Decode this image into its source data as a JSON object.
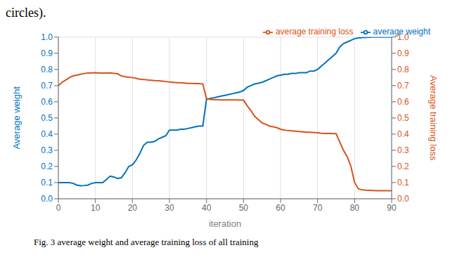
{
  "chart_data": {
    "type": "line",
    "title": "circles).",
    "annotations": [
      "Fig. 3 average weight and average training loss of all training"
    ],
    "xlabel": "iteration",
    "ylabel": "Average weight",
    "y2label": "Average training loss",
    "x": [
      0,
      1,
      2,
      3,
      4,
      5,
      6,
      7,
      8,
      9,
      10,
      11,
      12,
      13,
      14,
      15,
      16,
      17,
      18,
      19,
      20,
      21,
      22,
      23,
      24,
      25,
      26,
      27,
      28,
      29,
      30,
      31,
      32,
      33,
      34,
      35,
      36,
      37,
      38,
      39,
      40,
      41,
      42,
      43,
      44,
      45,
      46,
      47,
      48,
      49,
      50,
      51,
      52,
      53,
      54,
      55,
      56,
      57,
      58,
      59,
      60,
      61,
      62,
      63,
      64,
      65,
      66,
      67,
      68,
      69,
      70,
      71,
      72,
      73,
      74,
      75,
      76,
      77,
      78,
      79,
      80,
      81,
      82,
      83,
      84,
      85,
      86,
      87,
      88,
      89,
      90
    ],
    "series": [
      {
        "name": "average weight",
        "color": "#0072BD",
        "axis": "y",
        "values": [
          0.1,
          0.1,
          0.1,
          0.1,
          0.095,
          0.085,
          0.08,
          0.082,
          0.085,
          0.095,
          0.1,
          0.1,
          0.1,
          0.12,
          0.14,
          0.135,
          0.125,
          0.13,
          0.16,
          0.2,
          0.21,
          0.24,
          0.28,
          0.33,
          0.35,
          0.35,
          0.355,
          0.37,
          0.38,
          0.39,
          0.425,
          0.425,
          0.425,
          0.43,
          0.43,
          0.435,
          0.44,
          0.445,
          0.45,
          0.45,
          0.615,
          0.62,
          0.625,
          0.63,
          0.635,
          0.64,
          0.645,
          0.65,
          0.655,
          0.66,
          0.67,
          0.69,
          0.7,
          0.71,
          0.715,
          0.72,
          0.73,
          0.74,
          0.75,
          0.76,
          0.765,
          0.77,
          0.77,
          0.775,
          0.775,
          0.78,
          0.78,
          0.78,
          0.79,
          0.79,
          0.8,
          0.82,
          0.84,
          0.86,
          0.88,
          0.9,
          0.94,
          0.96,
          0.97,
          0.98,
          0.99,
          0.995,
          0.997,
          0.998,
          0.999,
          1.0,
          1.0,
          1.0,
          1.0,
          1.0,
          1.0
        ]
      },
      {
        "name": "average training loss",
        "color": "#D95319",
        "axis": "y2",
        "values": [
          0.7,
          0.72,
          0.735,
          0.75,
          0.76,
          0.765,
          0.77,
          0.775,
          0.778,
          0.779,
          0.78,
          0.778,
          0.778,
          0.778,
          0.779,
          0.776,
          0.773,
          0.76,
          0.755,
          0.752,
          0.75,
          0.745,
          0.74,
          0.738,
          0.735,
          0.733,
          0.731,
          0.73,
          0.728,
          0.725,
          0.722,
          0.72,
          0.718,
          0.718,
          0.716,
          0.714,
          0.714,
          0.713,
          0.712,
          0.71,
          0.62,
          0.615,
          0.614,
          0.613,
          0.612,
          0.612,
          0.611,
          0.611,
          0.611,
          0.61,
          0.61,
          0.575,
          0.545,
          0.51,
          0.49,
          0.47,
          0.46,
          0.45,
          0.445,
          0.44,
          0.43,
          0.425,
          0.422,
          0.42,
          0.418,
          0.416,
          0.414,
          0.412,
          0.412,
          0.41,
          0.408,
          0.405,
          0.404,
          0.404,
          0.403,
          0.403,
          0.35,
          0.3,
          0.26,
          0.2,
          0.1,
          0.062,
          0.055,
          0.053,
          0.052,
          0.051,
          0.05,
          0.05,
          0.05,
          0.05,
          0.05
        ]
      }
    ],
    "xlim": [
      0,
      90
    ],
    "xticks": [
      0,
      10,
      20,
      30,
      40,
      50,
      60,
      70,
      80,
      90
    ],
    "ylim": [
      0,
      1
    ],
    "yticks": [
      {
        "value": 0,
        "label": "0.0"
      },
      0.1,
      0.2,
      0.3,
      0.4,
      0.5,
      0.6,
      0.7,
      0.8,
      0.9,
      {
        "value": 1,
        "label": "1.0"
      }
    ],
    "y2lim": [
      0,
      1
    ],
    "y2ticks": [
      {
        "value": 0,
        "label": "0.0"
      },
      0.1,
      0.2,
      0.3,
      0.4,
      0.5,
      0.6,
      0.7,
      0.8,
      0.9,
      {
        "value": 1,
        "label": "1.0"
      }
    ],
    "grid": true,
    "legend": "upper right"
  }
}
